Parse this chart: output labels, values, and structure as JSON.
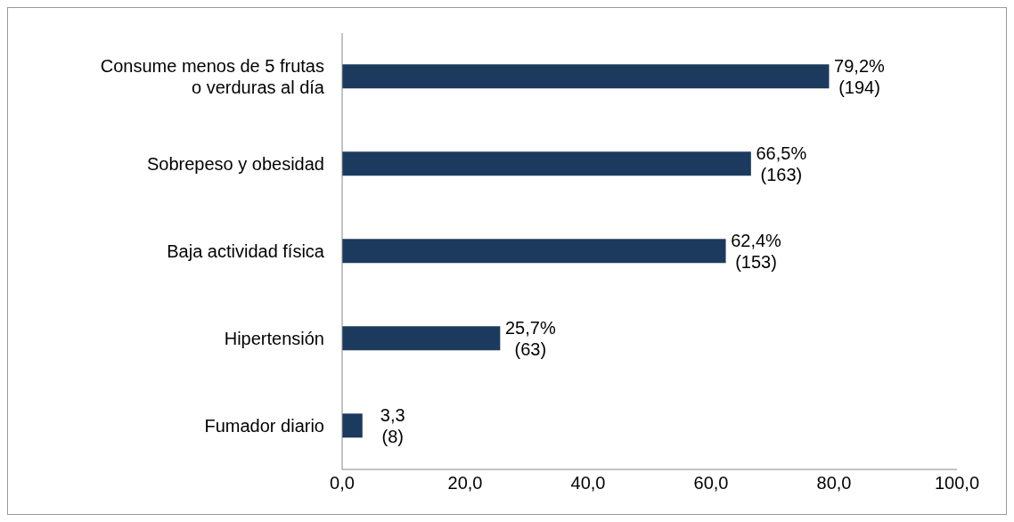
{
  "chart_data": {
    "type": "bar",
    "orientation": "horizontal",
    "categories": [
      "Consume menos de 5 frutas o verduras al día",
      "Sobrepeso y obesidad",
      "Baja actividad física",
      "Hipertensión",
      "Fumador diario"
    ],
    "values": [
      79.2,
      66.5,
      62.4,
      25.7,
      3.3
    ],
    "value_labels": [
      "79,2%\n(194)",
      "66,5%\n(163)",
      "62,4%\n(153)",
      "25,7%\n(63)",
      "3,3\n(8)"
    ],
    "color": "#1b3a5e",
    "xlim": [
      0,
      100
    ],
    "xticks": [
      {
        "value": 0,
        "label": "0,0"
      },
      {
        "value": 20,
        "label": "20,0"
      },
      {
        "value": 40,
        "label": "40,0"
      },
      {
        "value": 60,
        "label": "60,0"
      },
      {
        "value": 80,
        "label": "80,0"
      },
      {
        "value": 100,
        "label": "100,0"
      }
    ],
    "grid": false,
    "legend": false
  }
}
